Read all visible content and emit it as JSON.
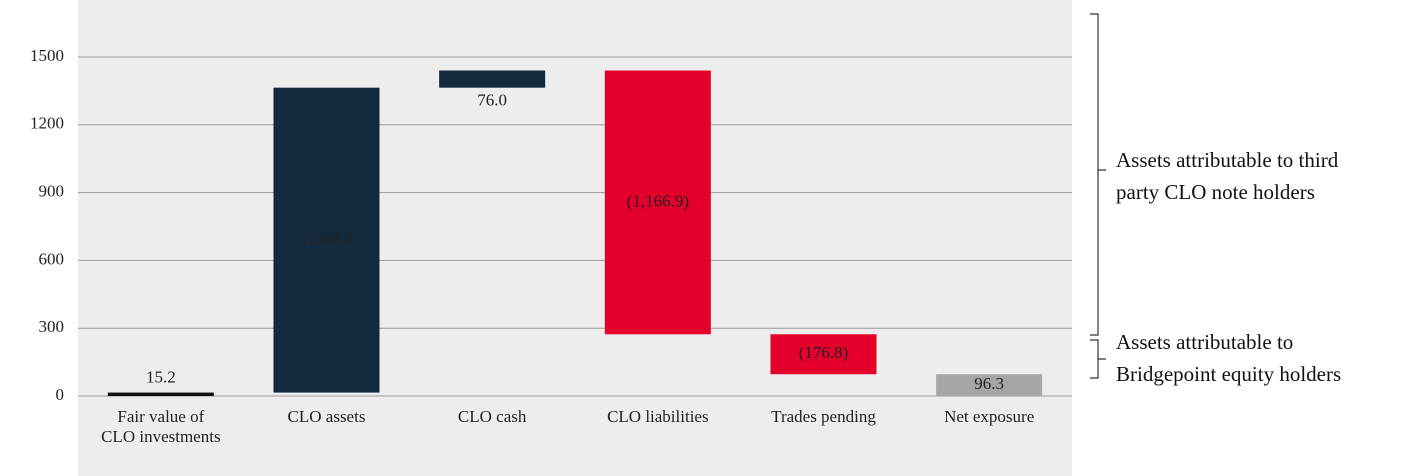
{
  "chart_data": {
    "type": "waterfall",
    "categories": [
      [
        "Fair value of",
        "CLO investments"
      ],
      [
        "CLO assets"
      ],
      [
        "CLO cash"
      ],
      [
        "CLO liabilities"
      ],
      [
        "Trades pending"
      ],
      [
        "Net exposure"
      ]
    ],
    "values": [
      15.2,
      1348.8,
      76.0,
      -1166.9,
      -176.8,
      96.3
    ],
    "value_labels": [
      "15.2",
      "1,348.8",
      "76.0",
      "(1,166.9)",
      "(176.8)",
      "96.3"
    ],
    "total_index": 5,
    "colors": [
      "#111111",
      "#13293d",
      "#13293d",
      "#e4002b",
      "#e4002b",
      "#a6a6a6"
    ],
    "ylim": [
      0,
      1690
    ],
    "yticks": [
      0,
      300,
      600,
      900,
      1200,
      1500
    ],
    "grid": true,
    "annotations": [
      [
        "Assets attributable to third",
        "party CLO note holders"
      ],
      [
        "Assets attributable to",
        "Bridgepoint equity holders"
      ]
    ]
  }
}
